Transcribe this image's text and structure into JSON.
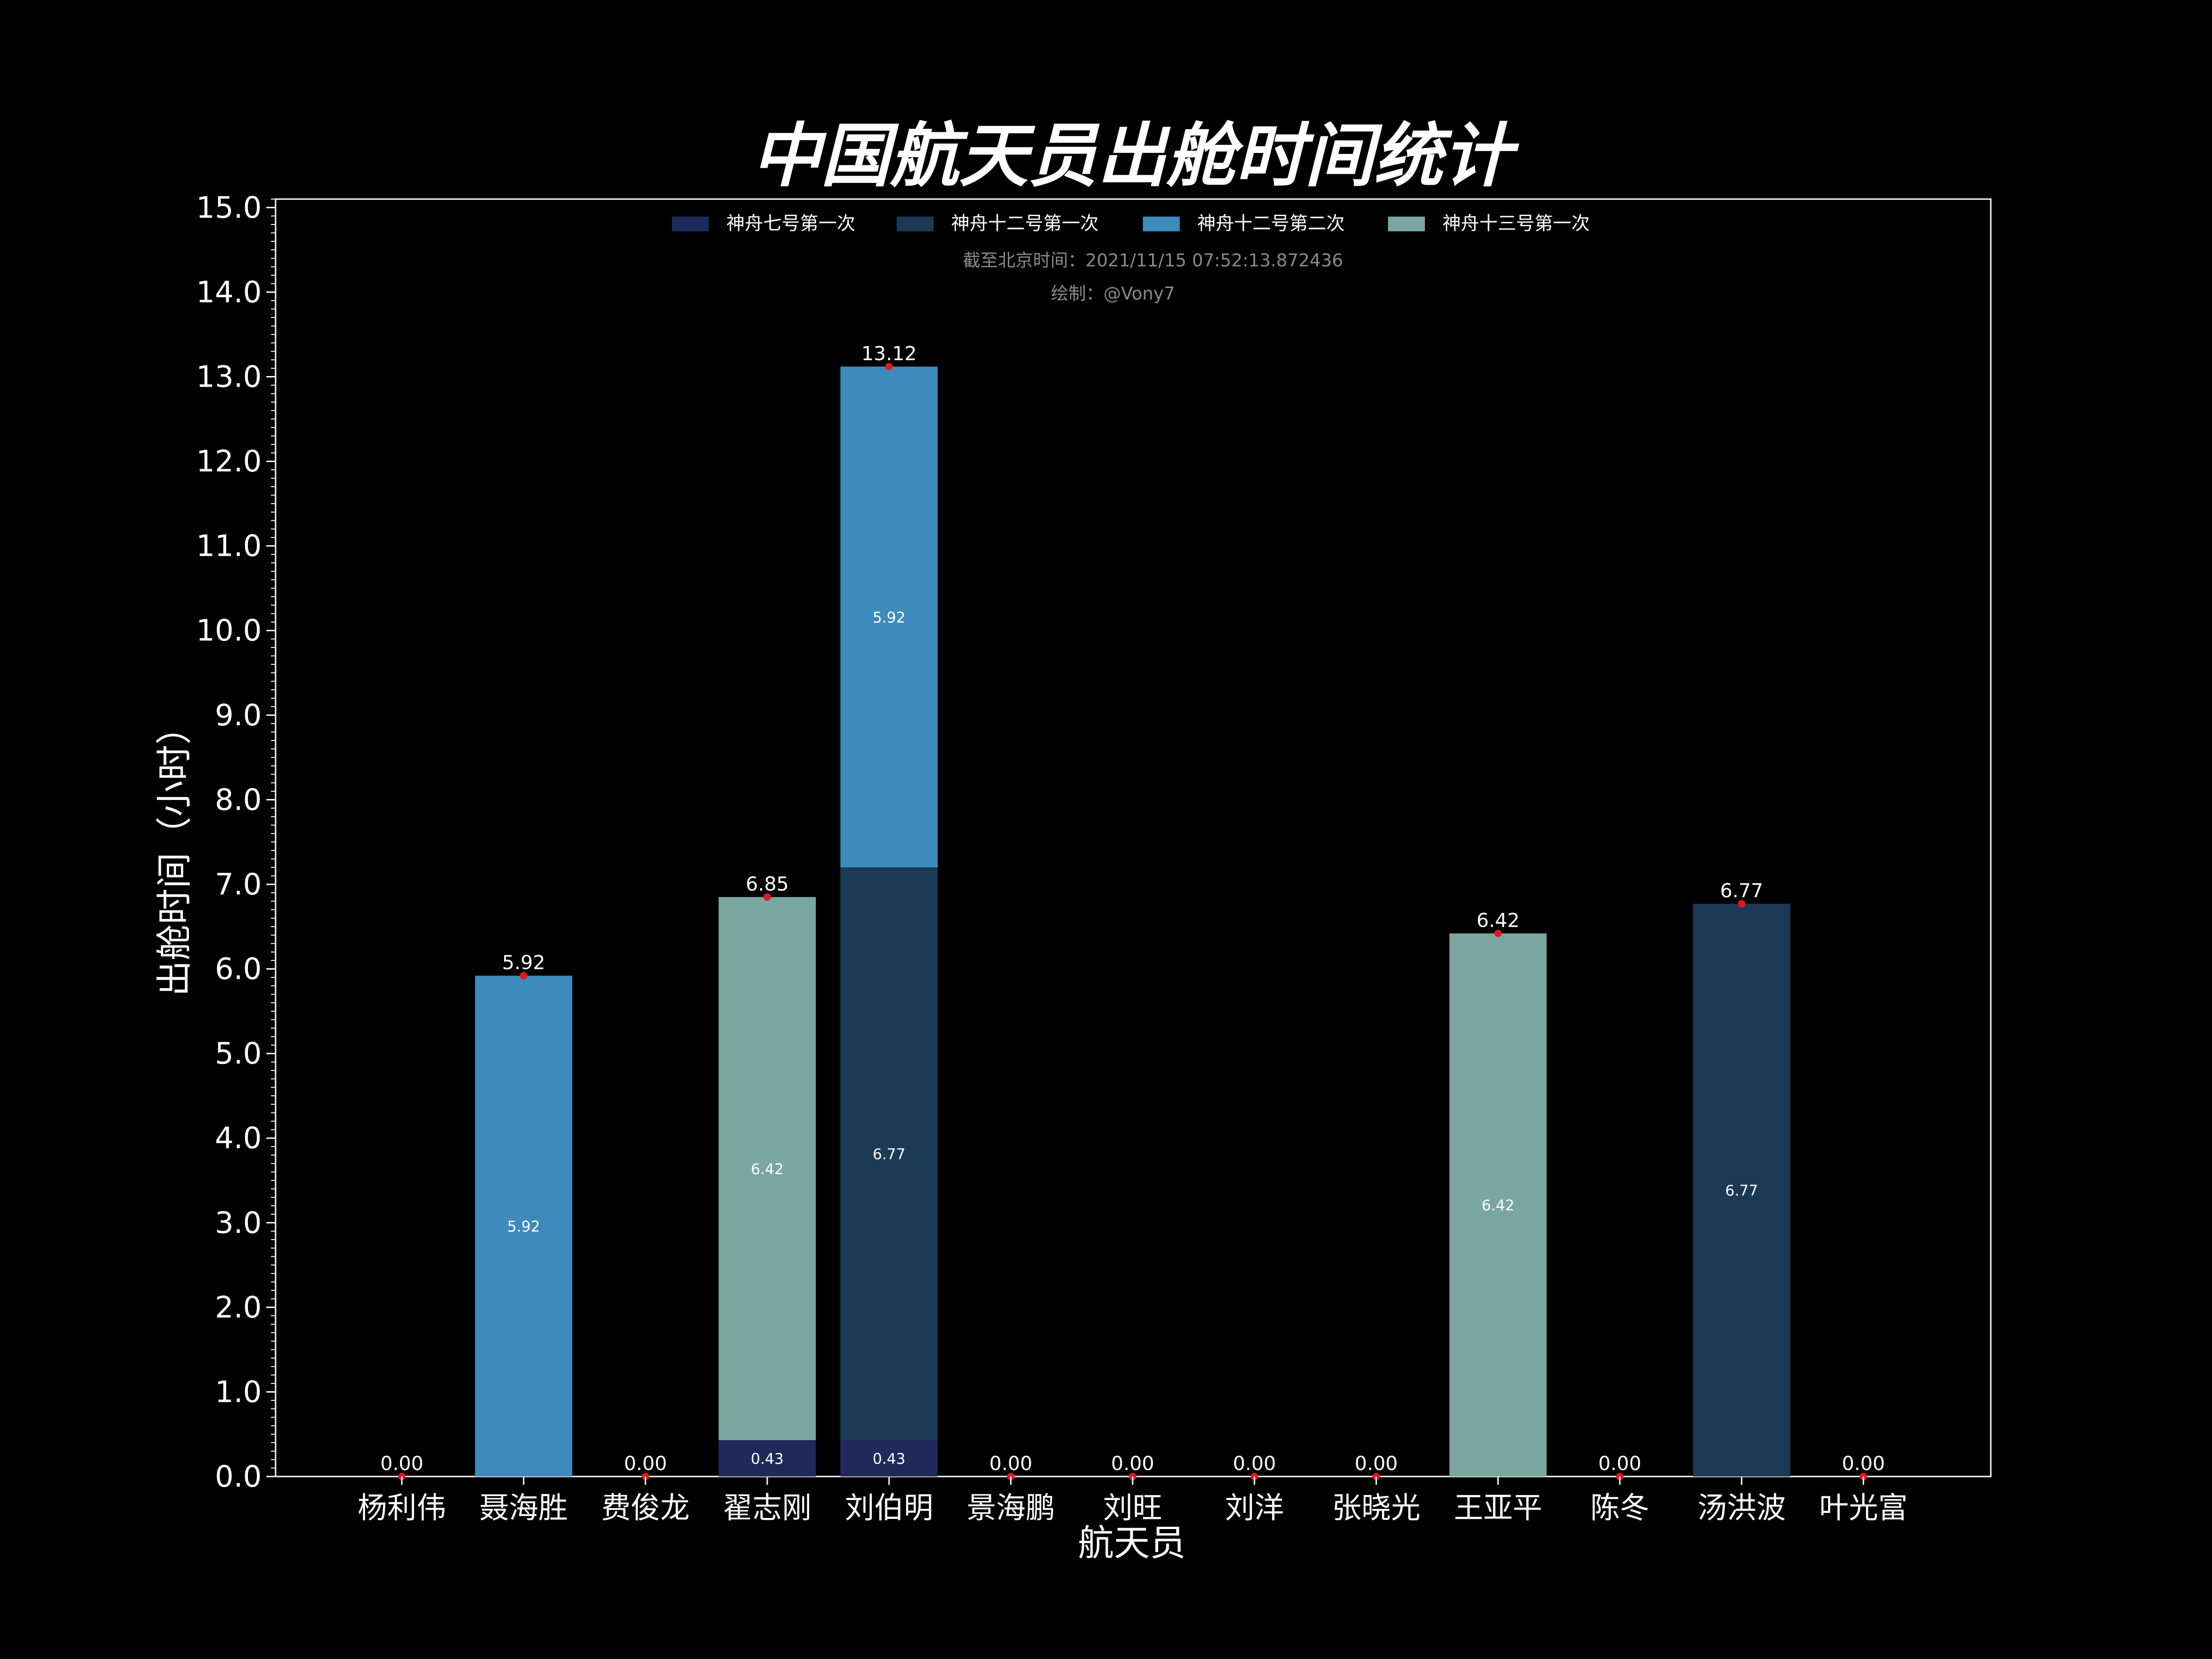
{
  "colors": {
    "background": "#000000",
    "axes": "#ffffff",
    "text": "#ffffff",
    "note": "#8a8a8a",
    "total_marker": "#e8161b"
  },
  "chart_data": {
    "type": "bar",
    "stacked": true,
    "title": "中国航天员出舱时间统计",
    "xlabel": "航天员",
    "ylabel": "出舱时间（小时）",
    "ylim": [
      0,
      15.1
    ],
    "yticks": [
      "0.0",
      "1.0",
      "2.0",
      "3.0",
      "4.0",
      "5.0",
      "6.0",
      "7.0",
      "8.0",
      "9.0",
      "10.0",
      "11.0",
      "12.0",
      "13.0",
      "14.0",
      "15.0"
    ],
    "grid": false,
    "legend": "top-center",
    "categories": [
      "杨利伟",
      "聂海胜",
      "费俊龙",
      "翟志刚",
      "刘伯明",
      "景海鹏",
      "刘旺",
      "刘洋",
      "张晓光",
      "王亚平",
      "陈冬",
      "汤洪波",
      "叶光富"
    ],
    "series": [
      {
        "name": "神舟七号第一次",
        "color": "#1f2a5c",
        "values": [
          0,
          0,
          0,
          0.43,
          0.43,
          0,
          0,
          0,
          0,
          0,
          0,
          0,
          0
        ]
      },
      {
        "name": "神舟十二号第一次",
        "color": "#1c3a55",
        "values": [
          0,
          0,
          0,
          0,
          6.77,
          0,
          0,
          0,
          0,
          0,
          0,
          6.77,
          0
        ]
      },
      {
        "name": "神舟十二号第二次",
        "color": "#3d8bbd",
        "values": [
          0,
          5.92,
          0,
          0,
          5.92,
          0,
          0,
          0,
          0,
          0,
          0,
          0,
          0
        ]
      },
      {
        "name": "神舟十三号第一次",
        "color": "#7aa6a0",
        "values": [
          0,
          0,
          0,
          6.42,
          0,
          0,
          0,
          0,
          0,
          6.42,
          0,
          0,
          0
        ]
      }
    ],
    "totals": [
      "0.00",
      "5.92",
      "0.00",
      "6.85",
      "13.12",
      "0.00",
      "0.00",
      "0.00",
      "0.00",
      "6.42",
      "0.00",
      "6.77",
      "0.00"
    ],
    "annotations": [
      "截至北京时间：2021/11/15 07:52:13.872436",
      "绘制：@Vony7"
    ]
  }
}
